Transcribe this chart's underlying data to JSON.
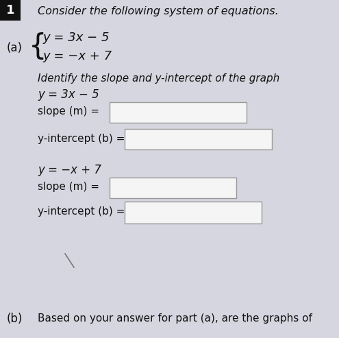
{
  "bg_color": "#d6d6e0",
  "header_box_color": "#111111",
  "header_text": "1",
  "title_text": "Consider the following system of equations.",
  "part_a_label": "(a)",
  "eq1": "y = 3x − 5",
  "eq2": "y = −x + 7",
  "identify_line1": "Identify the slope and y-intercept of the graph",
  "identify_line2": "y = 3x − 5",
  "slope1_label": "slope (m) =",
  "yint1_label": "y-intercept (b) =",
  "eq2_label": "y = −x + 7",
  "slope2_label": "slope (m) =",
  "yint2_label": "y-intercept (b) =",
  "part_b_label": "(b)",
  "part_b_text": "Based on your answer for part (a), are the graphs of",
  "input_box_color": "#f5f5f5",
  "input_box_edge": "#999999",
  "text_color": "#111111"
}
